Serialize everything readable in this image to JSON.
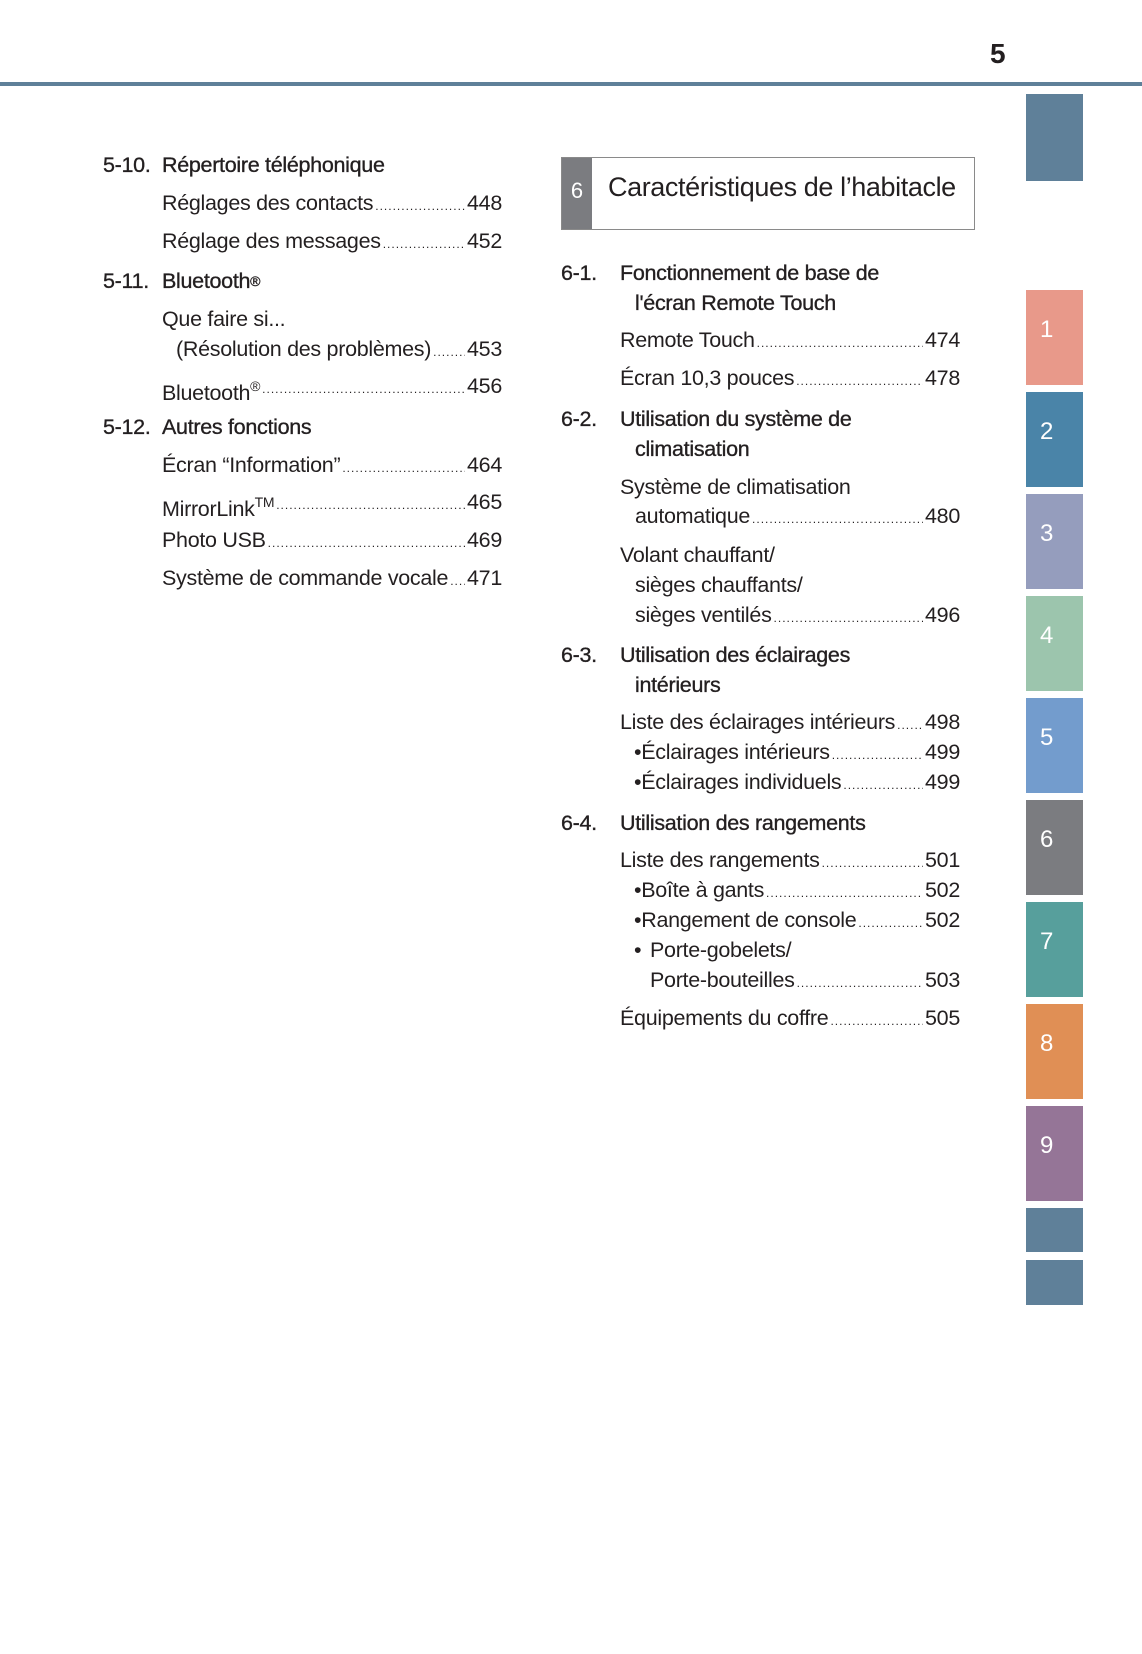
{
  "page_number": "5",
  "tabs": {
    "colors": [
      "#5f8099",
      "#e8998a",
      "#4a84a8",
      "#959dbd",
      "#9cc5ad",
      "#739ccd",
      "#7b7c80",
      "#579f9c",
      "#e08f55",
      "#957597",
      "#5f8099",
      "#5f8099"
    ],
    "labels": [
      "1",
      "2",
      "3",
      "4",
      "5",
      "6",
      "7",
      "8",
      "9"
    ]
  },
  "left": {
    "s510": {
      "num": "5-10.",
      "title": "Répertoire téléphonique",
      "e1": {
        "label": "Réglages des contacts",
        "page": "448"
      },
      "e2": {
        "label": "Réglage des messages",
        "page": "452"
      }
    },
    "s511": {
      "num": "5-11.",
      "title": "Bluetooth",
      "sup": "®",
      "e1": {
        "line1": "Que faire si...",
        "line2": "(Résolution des problèmes)",
        "page": "453"
      },
      "e2": {
        "label": "Bluetooth",
        "sup": "®",
        "page": "456"
      }
    },
    "s512": {
      "num": "5-12.",
      "title": "Autres fonctions",
      "e1": {
        "label": "Écran “Information”",
        "page": "464"
      },
      "e2": {
        "label": "MirrorLink",
        "sup": "TM",
        "page": "465"
      },
      "e3": {
        "label": "Photo USB",
        "page": "469"
      },
      "e4": {
        "label": "Système de commande vocale",
        "page": "471"
      }
    }
  },
  "chapter": {
    "num": "6",
    "title": "Caractéristiques de l’habitacle"
  },
  "right": {
    "s61": {
      "num": "6-1.",
      "title1": "Fonctionnement de base de",
      "title2": "l'écran Remote Touch",
      "e1": {
        "label": "Remote Touch",
        "page": "474"
      },
      "e2": {
        "label": "Écran 10,3 pouces",
        "page": "478"
      }
    },
    "s62": {
      "num": "6-2.",
      "title1": "Utilisation du système de",
      "title2": "climatisation",
      "e1": {
        "line1": "Système de climatisation",
        "line2": "automatique",
        "page": "480"
      },
      "e2": {
        "line1": "Volant chauffant/",
        "line2": "sièges chauffants/",
        "line3": "sièges ventilés",
        "page": "496"
      }
    },
    "s63": {
      "num": "6-3.",
      "title1": "Utilisation des éclairages",
      "title2": "intérieurs",
      "e1": {
        "label": "Liste des éclairages intérieurs",
        "page": "498"
      },
      "b1": {
        "label": "Éclairages intérieurs",
        "page": "499"
      },
      "b2": {
        "label": "Éclairages individuels",
        "page": "499"
      }
    },
    "s64": {
      "num": "6-4.",
      "title": "Utilisation des rangements",
      "e1": {
        "label": "Liste des rangements",
        "page": "501"
      },
      "b1": {
        "label": "Boîte à gants",
        "page": "502"
      },
      "b2": {
        "label": "Rangement de console",
        "page": "502"
      },
      "b3": {
        "line1": "Porte-gobelets/",
        "line2": "Porte-bouteilles",
        "page": "503"
      },
      "e2": {
        "label": "Équipements du coffre",
        "page": "505"
      }
    }
  },
  "bullet": "•"
}
